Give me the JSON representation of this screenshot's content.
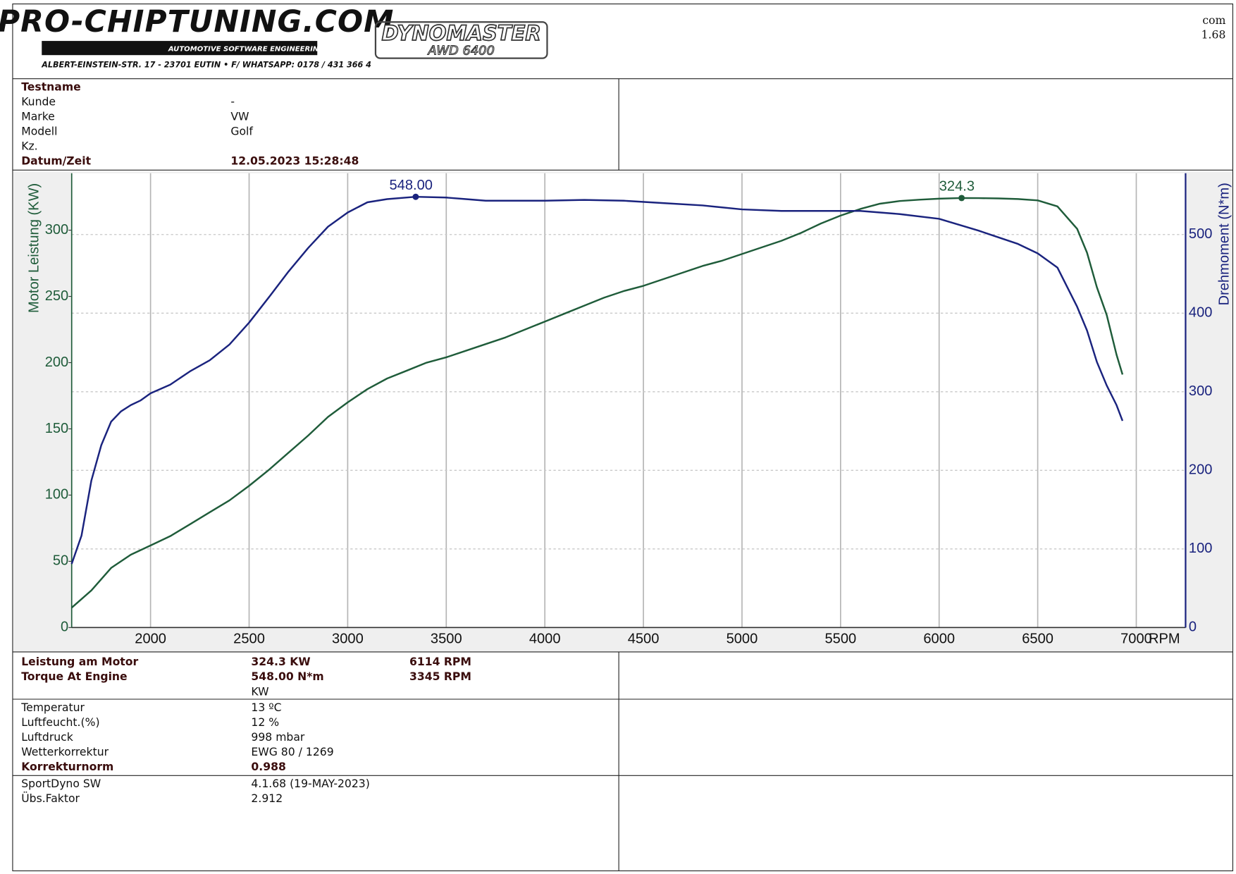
{
  "header": {
    "brand": "PRO-CHIPTUNING.COM",
    "tagline": "AUTOMOTIVE SOFTWARE ENGINEERING",
    "address": "ALBERT-EINSTEIN-STR. 17 - 23701 EUTIN • F/ WHATSAPP: 0178 / 431 366 4",
    "dyno_name": "DYNOMASTER",
    "dyno_model": "AWD 6400",
    "corner_top": "com",
    "corner_bottom": "1.68"
  },
  "info": {
    "rows": [
      [
        "Testname"
      ],
      [
        "Kunde",
        "-"
      ],
      [
        "Marke",
        "VW"
      ],
      [
        "Modell",
        "Golf"
      ],
      [
        "Kz."
      ],
      [
        "Datum/Zeit",
        "12.05.2023 15:28:48"
      ]
    ]
  },
  "chart_data": {
    "type": "line",
    "y_label": "Motor Leistung (KW)",
    "y2_label": "Drehmoment (N*m)",
    "x_label": "RPM",
    "xlim": [
      1600,
      7250
    ],
    "xticks": [
      2000,
      2500,
      3000,
      3500,
      4000,
      4500,
      5000,
      5500,
      6000,
      6500,
      7000
    ],
    "ylim": [
      0,
      343
    ],
    "yticks": [
      0,
      50,
      100,
      150,
      200,
      250,
      300
    ],
    "y2lim": [
      0,
      578
    ],
    "y2ticks": [
      0,
      100,
      200,
      300,
      400,
      500
    ],
    "grid": true,
    "series": [
      {
        "name": "Leistung",
        "color": "#1f5c3a",
        "axis": "y",
        "x": [
          1600,
          1700,
          1800,
          1900,
          2000,
          2100,
          2200,
          2300,
          2400,
          2500,
          2600,
          2700,
          2800,
          2900,
          3000,
          3100,
          3200,
          3300,
          3400,
          3500,
          3600,
          3700,
          3800,
          3900,
          4000,
          4100,
          4200,
          4300,
          4400,
          4500,
          4600,
          4700,
          4800,
          4900,
          5000,
          5100,
          5200,
          5300,
          5400,
          5500,
          5600,
          5700,
          5800,
          5900,
          6000,
          6114,
          6200,
          6300,
          6400,
          6500,
          6600,
          6700,
          6750,
          6800,
          6850,
          6900,
          6930
        ],
        "values": [
          15,
          28,
          45,
          55,
          62,
          69,
          78,
          87,
          96,
          107,
          119,
          132,
          145,
          159,
          170,
          180,
          188,
          194,
          200,
          204,
          209,
          214,
          219,
          225,
          231,
          237,
          243,
          249,
          254,
          258,
          263,
          268,
          273,
          277,
          282,
          287,
          292,
          298,
          305,
          311,
          316,
          320,
          322,
          323,
          323.8,
          324.3,
          324.2,
          324,
          323.5,
          322.5,
          318,
          301,
          283,
          257,
          236,
          206,
          191
        ],
        "peak": {
          "x": 6114,
          "y": 324.3,
          "label": "324.3"
        }
      },
      {
        "name": "Drehmoment",
        "color": "#1a237e",
        "axis": "y2",
        "x": [
          1600,
          1650,
          1700,
          1750,
          1800,
          1850,
          1900,
          1950,
          2000,
          2100,
          2200,
          2300,
          2400,
          2500,
          2600,
          2700,
          2800,
          2900,
          3000,
          3100,
          3200,
          3345,
          3500,
          3600,
          3700,
          4000,
          4200,
          4400,
          4600,
          4800,
          5000,
          5200,
          5400,
          5600,
          5800,
          6000,
          6200,
          6400,
          6500,
          6600,
          6700,
          6750,
          6800,
          6850,
          6900,
          6930
        ],
        "values": [
          81,
          117,
          187,
          232,
          262,
          275,
          283,
          289,
          298,
          309,
          326,
          340,
          360,
          388,
          420,
          453,
          483,
          510,
          528,
          541,
          545,
          548,
          547,
          545,
          543,
          543,
          544,
          543,
          540,
          537,
          532,
          530,
          530,
          530,
          526,
          520,
          505,
          488,
          476,
          458,
          408,
          378,
          338,
          308,
          283,
          263
        ],
        "peak": {
          "x": 3345,
          "y": 548,
          "label": "548.00"
        }
      }
    ]
  },
  "results": {
    "rows": [
      [
        "Leistung am Motor",
        "324.3 KW",
        "6114 RPM"
      ],
      [
        "Torque At Engine",
        "548.00 N*m",
        "3345 RPM"
      ]
    ],
    "unit": "KW"
  },
  "conditions": {
    "rows": [
      [
        "Temperatur",
        "13 ºC"
      ],
      [
        "Luftfeucht.(%)",
        "12 %"
      ],
      [
        "Luftdruck",
        "998 mbar"
      ],
      [
        "Wetterkorrektur",
        "EWG 80 / 1269"
      ],
      [
        "Korrekturnorm",
        "0.988"
      ]
    ]
  },
  "software": {
    "rows": [
      [
        "SportDyno SW",
        "4.1.68 (19-MAY-2023)"
      ],
      [
        "Übs.Faktor",
        "2.912"
      ]
    ]
  }
}
